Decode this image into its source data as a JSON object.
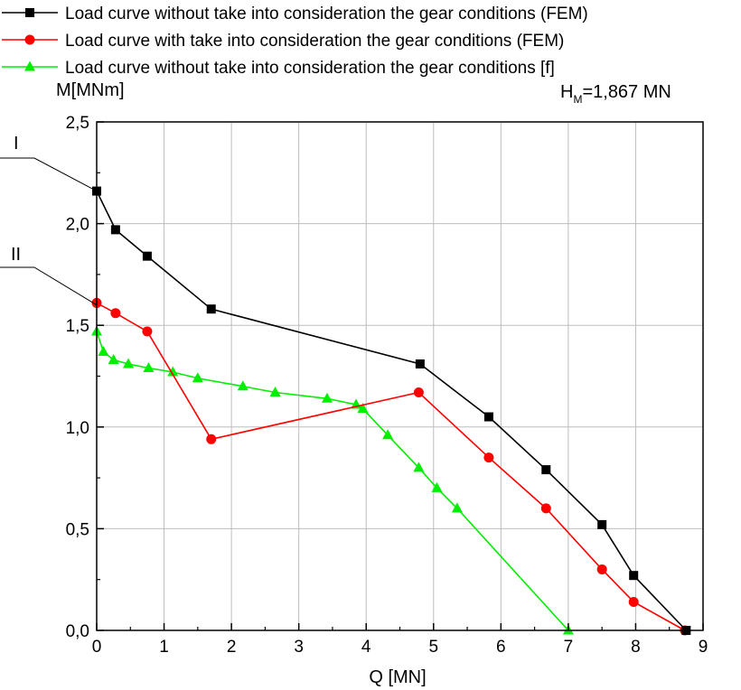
{
  "chart_data": {
    "type": "line",
    "title": "",
    "xlabel": "Q [MN]",
    "ylabel": "M[MNm]",
    "xlim": [
      0,
      9
    ],
    "ylim": [
      0,
      2.5
    ],
    "xticks": [
      0,
      1,
      2,
      3,
      4,
      5,
      6,
      7,
      8,
      9
    ],
    "yticks": [
      0.0,
      0.5,
      1.0,
      1.5,
      2.0,
      2.5
    ],
    "xtick_labels": [
      "0",
      "1",
      "2",
      "3",
      "4",
      "5",
      "6",
      "7",
      "8",
      "9"
    ],
    "ytick_labels": [
      "0,0",
      "0,5",
      "1,0",
      "1,5",
      "2,0",
      "2,5"
    ],
    "grid": true,
    "legend_position": "top-left (above plot)",
    "annotation": {
      "main": "H",
      "sub": "M",
      "rest": "=1,867 MN"
    },
    "curve_labels": [
      {
        "text": "I",
        "x": 0.0,
        "y": 2.16
      },
      {
        "text": "II",
        "x": 0.0,
        "y": 1.6
      }
    ],
    "series": [
      {
        "name": "Load curve without take into consideration the gear conditions (FEM)",
        "color": "#000000",
        "marker": "square",
        "x": [
          0.0,
          0.28,
          0.75,
          1.7,
          4.8,
          5.82,
          6.67,
          7.5,
          7.97,
          8.75
        ],
        "y": [
          2.16,
          1.97,
          1.84,
          1.58,
          1.31,
          1.05,
          0.79,
          0.52,
          0.27,
          0.0
        ]
      },
      {
        "name": "Load curve with take into consideration the gear conditions (FEM)",
        "color": "#ff0000",
        "marker": "circle",
        "x": [
          0.0,
          0.28,
          0.75,
          1.7,
          4.78,
          5.82,
          6.67,
          7.5,
          7.97,
          8.73
        ],
        "y": [
          1.61,
          1.56,
          1.47,
          0.94,
          1.17,
          0.85,
          0.6,
          0.3,
          0.14,
          0.0
        ]
      },
      {
        "name": "Load curve without take into consideration the gear conditions [f]",
        "color": "#00ee00",
        "marker": "triangle",
        "x": [
          0.0,
          0.1,
          0.25,
          0.47,
          0.77,
          1.13,
          1.5,
          2.17,
          2.65,
          3.42,
          3.85,
          3.95,
          4.32,
          4.78,
          5.05,
          5.35,
          7.0
        ],
        "y": [
          1.47,
          1.37,
          1.33,
          1.31,
          1.29,
          1.27,
          1.24,
          1.2,
          1.17,
          1.14,
          1.11,
          1.09,
          0.96,
          0.8,
          0.7,
          0.6,
          0.0
        ]
      }
    ]
  }
}
